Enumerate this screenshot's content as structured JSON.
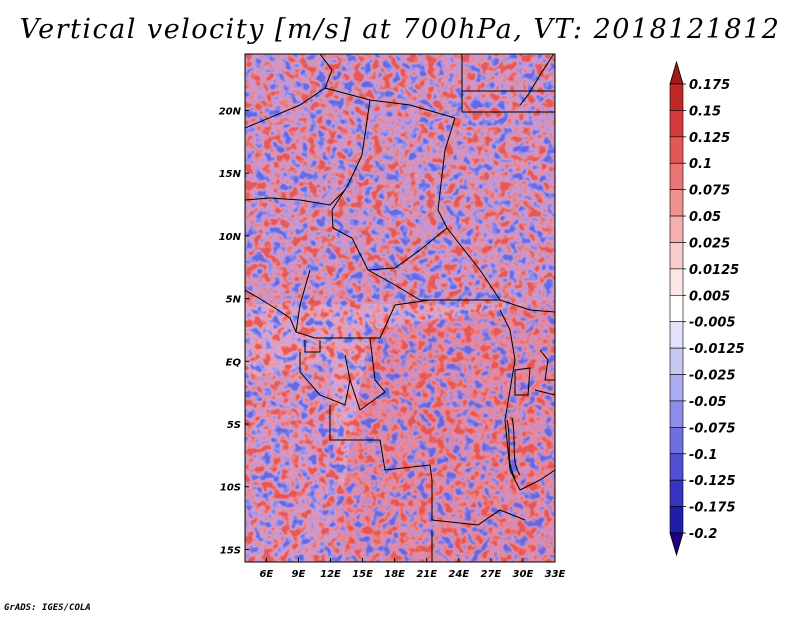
{
  "title": "Vertical velocity [m/s] at 700hPa, VT: 2018121812",
  "credit": "GrADS: IGES/COLA",
  "map": {
    "lon_range": [
      4,
      33
    ],
    "lat_range": [
      -16,
      24.5
    ],
    "lon_ticks": [
      "6E",
      "9E",
      "12E",
      "15E",
      "18E",
      "21E",
      "24E",
      "27E",
      "30E",
      "33E"
    ],
    "lon_tick_values": [
      6,
      9,
      12,
      15,
      18,
      21,
      24,
      27,
      30,
      33
    ],
    "lat_ticks": [
      "20N",
      "15N",
      "10N",
      "5N",
      "EQ",
      "5S",
      "10S",
      "15S"
    ],
    "lat_tick_values": [
      20,
      15,
      10,
      5,
      0,
      -5,
      -10,
      -15
    ]
  },
  "colorbar": {
    "labels": [
      "0.175",
      "0.15",
      "0.125",
      "0.1",
      "0.075",
      "0.05",
      "0.025",
      "0.0125",
      "0.005",
      "-0.005",
      "-0.0125",
      "-0.025",
      "-0.05",
      "-0.075",
      "-0.1",
      "-0.125",
      "-0.175",
      "-0.2"
    ],
    "colors": [
      "#a01818",
      "#c02828",
      "#d63a3a",
      "#e25858",
      "#e87676",
      "#ee9292",
      "#f4afaf",
      "#f9cdcd",
      "#fde6e6",
      "#ffffff",
      "#e2e2fb",
      "#c8c8f5",
      "#ababf0",
      "#8e8ee8",
      "#6f6fdf",
      "#5050d3",
      "#3434c0",
      "#1e1eaa",
      "#13138f"
    ],
    "top_arrow_color": "#a01818",
    "bottom_arrow_color": "#200080"
  }
}
